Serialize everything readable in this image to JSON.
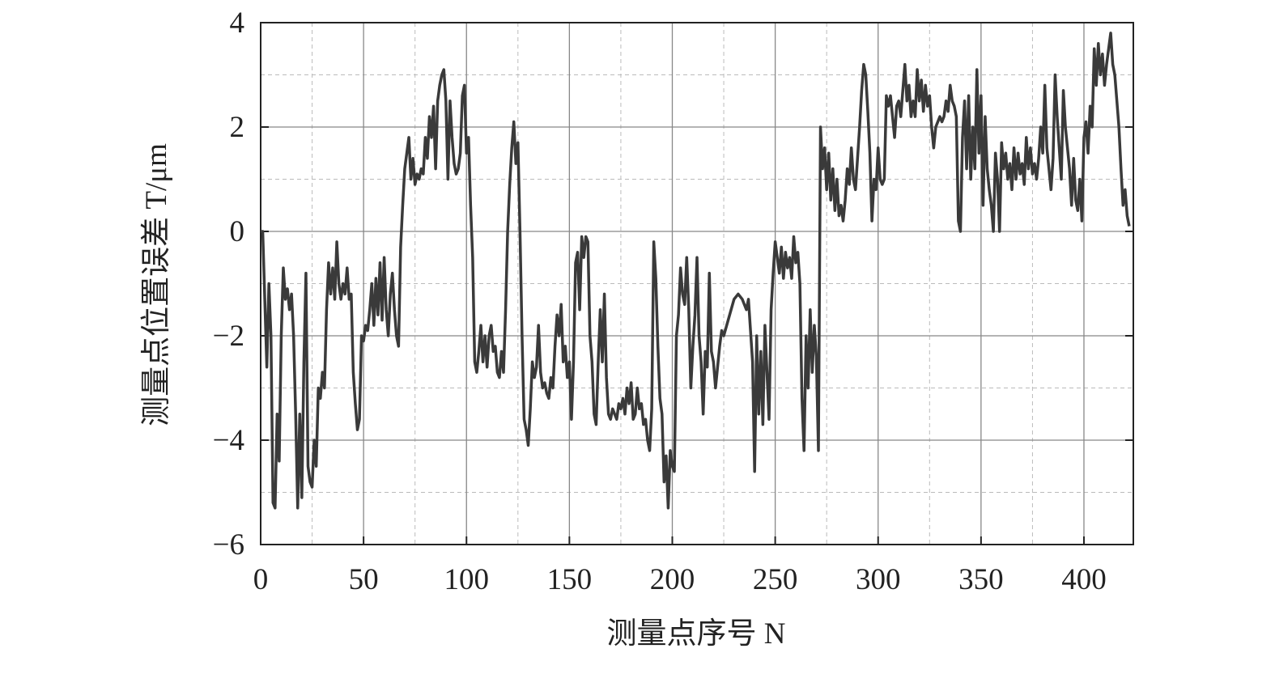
{
  "chart_data": {
    "type": "line",
    "xlabel": "测量点序号 N",
    "ylabel": "测量点位置误差 T/μm",
    "xlim": [
      0,
      424
    ],
    "ylim": [
      -6,
      4
    ],
    "xticks": [
      0,
      50,
      100,
      150,
      200,
      250,
      300,
      350,
      400
    ],
    "yticks": [
      {
        "value": -6,
        "label": "−6"
      },
      {
        "value": -4,
        "label": "−4"
      },
      {
        "value": -2,
        "label": "−2"
      },
      0,
      2,
      4
    ],
    "x_minor_grid": [
      25,
      75,
      125,
      175,
      225,
      275,
      325,
      375
    ],
    "y_minor_grid": [
      -5,
      -3,
      -1,
      1,
      3
    ],
    "grid": true,
    "color": "#3a3a3a",
    "x": [
      0,
      1,
      2,
      3,
      4,
      5,
      6,
      7,
      8,
      9,
      10,
      11,
      12,
      13,
      14,
      15,
      16,
      17,
      18,
      19,
      20,
      21,
      22,
      23,
      24,
      25,
      26,
      27,
      28,
      29,
      30,
      31,
      32,
      33,
      34,
      35,
      36,
      37,
      38,
      39,
      40,
      41,
      42,
      43,
      44,
      45,
      46,
      47,
      48,
      49,
      50,
      51,
      52,
      53,
      54,
      55,
      56,
      57,
      58,
      59,
      60,
      61,
      62,
      63,
      64,
      65,
      66,
      67,
      68,
      69,
      70,
      71,
      72,
      73,
      74,
      75,
      76,
      77,
      78,
      79,
      80,
      81,
      82,
      83,
      84,
      85,
      86,
      87,
      88,
      89,
      90,
      91,
      92,
      93,
      94,
      95,
      96,
      97,
      98,
      99,
      100,
      101,
      102,
      103,
      104,
      105,
      106,
      107,
      108,
      109,
      110,
      111,
      112,
      113,
      114,
      115,
      116,
      117,
      118,
      119,
      120,
      121,
      122,
      123,
      124,
      125,
      126,
      127,
      128,
      129,
      130,
      131,
      132,
      133,
      134,
      135,
      136,
      137,
      138,
      139,
      140,
      141,
      142,
      143,
      144,
      145,
      146,
      147,
      148,
      149,
      150,
      151,
      152,
      153,
      154,
      155,
      156,
      157,
      158,
      159,
      160,
      161,
      162,
      163,
      164,
      165,
      166,
      167,
      168,
      169,
      170,
      171,
      172,
      173,
      174,
      175,
      176,
      177,
      178,
      179,
      180,
      181,
      182,
      183,
      184,
      185,
      186,
      187,
      188,
      189,
      190,
      191,
      192,
      193,
      194,
      195,
      196,
      197,
      198,
      199,
      200,
      201,
      202,
      203,
      204,
      205,
      206,
      207,
      208,
      209,
      210,
      211,
      212,
      213,
      214,
      215,
      216,
      217,
      218,
      219,
      220,
      221,
      222,
      223,
      224,
      225,
      230,
      232,
      234,
      236,
      237,
      238,
      239,
      240,
      241,
      242,
      243,
      244,
      245,
      246,
      247,
      248,
      249,
      250,
      251,
      252,
      253,
      254,
      255,
      256,
      257,
      258,
      259,
      260,
      261,
      262,
      263,
      264,
      265,
      266,
      267,
      268,
      269,
      270,
      271,
      272,
      273,
      274,
      275,
      276,
      277,
      278,
      279,
      280,
      281,
      282,
      283,
      284,
      285,
      286,
      287,
      288,
      289,
      290,
      291,
      292,
      293,
      294,
      295,
      296,
      297,
      298,
      299,
      300,
      301,
      302,
      303,
      304,
      305,
      306,
      307,
      308,
      309,
      310,
      311,
      312,
      313,
      314,
      315,
      316,
      317,
      318,
      319,
      320,
      321,
      322,
      323,
      324,
      325,
      326,
      327,
      328,
      329,
      330,
      331,
      332,
      333,
      334,
      335,
      336,
      337,
      338,
      339,
      340,
      341,
      342,
      343,
      344,
      345,
      346,
      347,
      348,
      349,
      350,
      351,
      352,
      353,
      354,
      355,
      356,
      357,
      358,
      359,
      360,
      361,
      362,
      363,
      364,
      365,
      366,
      367,
      368,
      369,
      370,
      371,
      372,
      373,
      374,
      375,
      376,
      377,
      378,
      379,
      380,
      381,
      382,
      383,
      384,
      385,
      386,
      387,
      388,
      389,
      390,
      391,
      392,
      393,
      394,
      395,
      396,
      397,
      398,
      399,
      400,
      401,
      402,
      403,
      404,
      405,
      406,
      407,
      408,
      409,
      410,
      411,
      412,
      413,
      414,
      415,
      416,
      417,
      418,
      419,
      420,
      421,
      422
    ],
    "values": [
      0,
      0,
      -1.3,
      -2.6,
      -1,
      -2,
      -5.2,
      -5.3,
      -3.5,
      -4.4,
      -2,
      -0.7,
      -1.3,
      -1.1,
      -1.5,
      -1.2,
      -2,
      -3.5,
      -5.3,
      -3.5,
      -5.1,
      -2.5,
      -0.8,
      -4.5,
      -4.8,
      -4.9,
      -4,
      -4.5,
      -3,
      -3.2,
      -2.7,
      -3,
      -1.5,
      -0.6,
      -1.2,
      -0.7,
      -1.3,
      -0.2,
      -1,
      -1.3,
      -1,
      -1.2,
      -0.7,
      -1.3,
      -1.2,
      -2.7,
      -3.3,
      -3.8,
      -3.6,
      -2,
      -2.1,
      -1.8,
      -1.9,
      -1.5,
      -1,
      -1.8,
      -0.9,
      -1.6,
      -0.6,
      -1.7,
      -0.5,
      -1.5,
      -2,
      -1.2,
      -0.8,
      -1.5,
      -2,
      -2.2,
      -0.3,
      0.5,
      1.2,
      1.5,
      1.8,
      1,
      1.4,
      0.9,
      1.1,
      1,
      1.2,
      1.1,
      1.8,
      1.4,
      2.2,
      1.8,
      2.4,
      1.2,
      2.5,
      2.8,
      3,
      3.1,
      2.5,
      1,
      2.5,
      1.8,
      1.3,
      1.1,
      1.2,
      1.5,
      2.6,
      2.8,
      1.5,
      1.8,
      0.5,
      -0.5,
      -2.5,
      -2.7,
      -2.3,
      -1.8,
      -2.5,
      -2,
      -2.6,
      -2,
      -1.8,
      -2.3,
      -2.2,
      -2.7,
      -2.8,
      -2.3,
      -2.7,
      -1.5,
      0,
      0.9,
      1.6,
      2.1,
      1.3,
      1.7,
      0,
      -2,
      -3.6,
      -3.8,
      -4.1,
      -3.4,
      -2.5,
      -2.8,
      -2.6,
      -1.8,
      -2.7,
      -3,
      -2.9,
      -3.1,
      -3.2,
      -2.8,
      -3,
      -2.2,
      -1.6,
      -2,
      -1.4,
      -2.5,
      -2.2,
      -2.8,
      -2.5,
      -3.6,
      -2.5,
      -0.6,
      -0.4,
      -1.5,
      -0.1,
      -0.5,
      -0.1,
      -0.2,
      -2,
      -2.5,
      -3.5,
      -3.7,
      -2.5,
      -1.5,
      -2.5,
      -1.2,
      -2.8,
      -3.5,
      -3.6,
      -3.4,
      -3.5,
      -3.6,
      -3.3,
      -3.4,
      -3.2,
      -3.5,
      -3,
      -3.3,
      -2.9,
      -3.6,
      -3.5,
      -3,
      -3.4,
      -3.3,
      -3.7,
      -3.6,
      -4,
      -4.2,
      -3.4,
      -0.2,
      -0.9,
      -2.2,
      -3.2,
      -3.5,
      -4.8,
      -4.3,
      -5.3,
      -4.2,
      -4.5,
      -4.6,
      -2,
      -1.6,
      -0.7,
      -1.2,
      -1.4,
      -0.5,
      -1.5,
      -3,
      -2.2,
      -1.6,
      -0.5,
      -2,
      -2.5,
      -3.5,
      -2.3,
      -2.6,
      -0.8,
      -2.3,
      -2.5,
      -3,
      -2.6,
      -2.2,
      -1.9,
      -2,
      -1.3,
      -1.2,
      -1.3,
      -1.5,
      -1.3,
      -1.9,
      -2.5,
      -4.6,
      -2,
      -3.5,
      -2.3,
      -3.7,
      -1.8,
      -2.7,
      -3.6,
      -1.5,
      -0.8,
      -0.2,
      -0.5,
      -0.8,
      -0.3,
      -0.9,
      -0.4,
      -0.7,
      -0.5,
      -0.9,
      -0.1,
      -0.6,
      -0.4,
      -1,
      -3.2,
      -4.2,
      -2,
      -3,
      -1.5,
      -2.7,
      -1.8,
      -2.4,
      -4.2,
      2,
      1.2,
      1.6,
      0.8,
      1.5,
      0.6,
      1.2,
      0.4,
      1,
      0.3,
      0.5,
      0.2,
      0.6,
      1.2,
      0.9,
      1.6,
      1,
      0.8,
      1.4,
      2,
      2.7,
      3.2,
      3,
      2.3,
      1.5,
      0.2,
      1,
      0.8,
      1.6,
      1,
      0.9,
      1,
      2.6,
      2.4,
      2.6,
      2.2,
      1.8,
      2.4,
      2.5,
      2.2,
      2.7,
      3.2,
      2.5,
      2.8,
      2.2,
      2.5,
      2.2,
      3.1,
      2.5,
      2.9,
      2.3,
      2.8,
      2.4,
      2.6,
      2,
      1.6,
      2,
      2.1,
      2.2,
      2.1,
      2.2,
      2.5,
      2.3,
      2.8,
      2.5,
      2.4,
      2.2,
      0.2,
      0,
      1.8,
      2.5,
      1.2,
      2.6,
      1,
      2,
      1.2,
      3.1,
      1.5,
      2.6,
      0.5,
      2.2,
      1.2,
      0.8,
      0.5,
      0,
      1.5,
      1,
      0,
      1.7,
      1.2,
      1.5,
      1,
      1.3,
      0.8,
      1.6,
      1,
      1.5,
      1.1,
      1.3,
      0.9,
      1.8,
      1.2,
      1.6,
      1.1,
      1.3,
      1,
      1.4,
      2,
      1.5,
      2.8,
      1.6,
      1.2,
      0.8,
      1.4,
      3,
      2.2,
      1.6,
      1,
      2.7,
      2,
      1.6,
      1.2,
      0.5,
      1.4,
      0.6,
      0.4,
      1,
      0.2,
      1.8,
      2.1,
      1.5,
      2.4,
      2,
      3.5,
      2.8,
      3.6,
      3,
      3.4,
      2.8,
      3.2,
      3.5,
      3.8,
      3.2,
      3,
      2.5,
      2,
      1.2,
      0.5,
      0.8,
      0.3,
      0.1
    ]
  }
}
